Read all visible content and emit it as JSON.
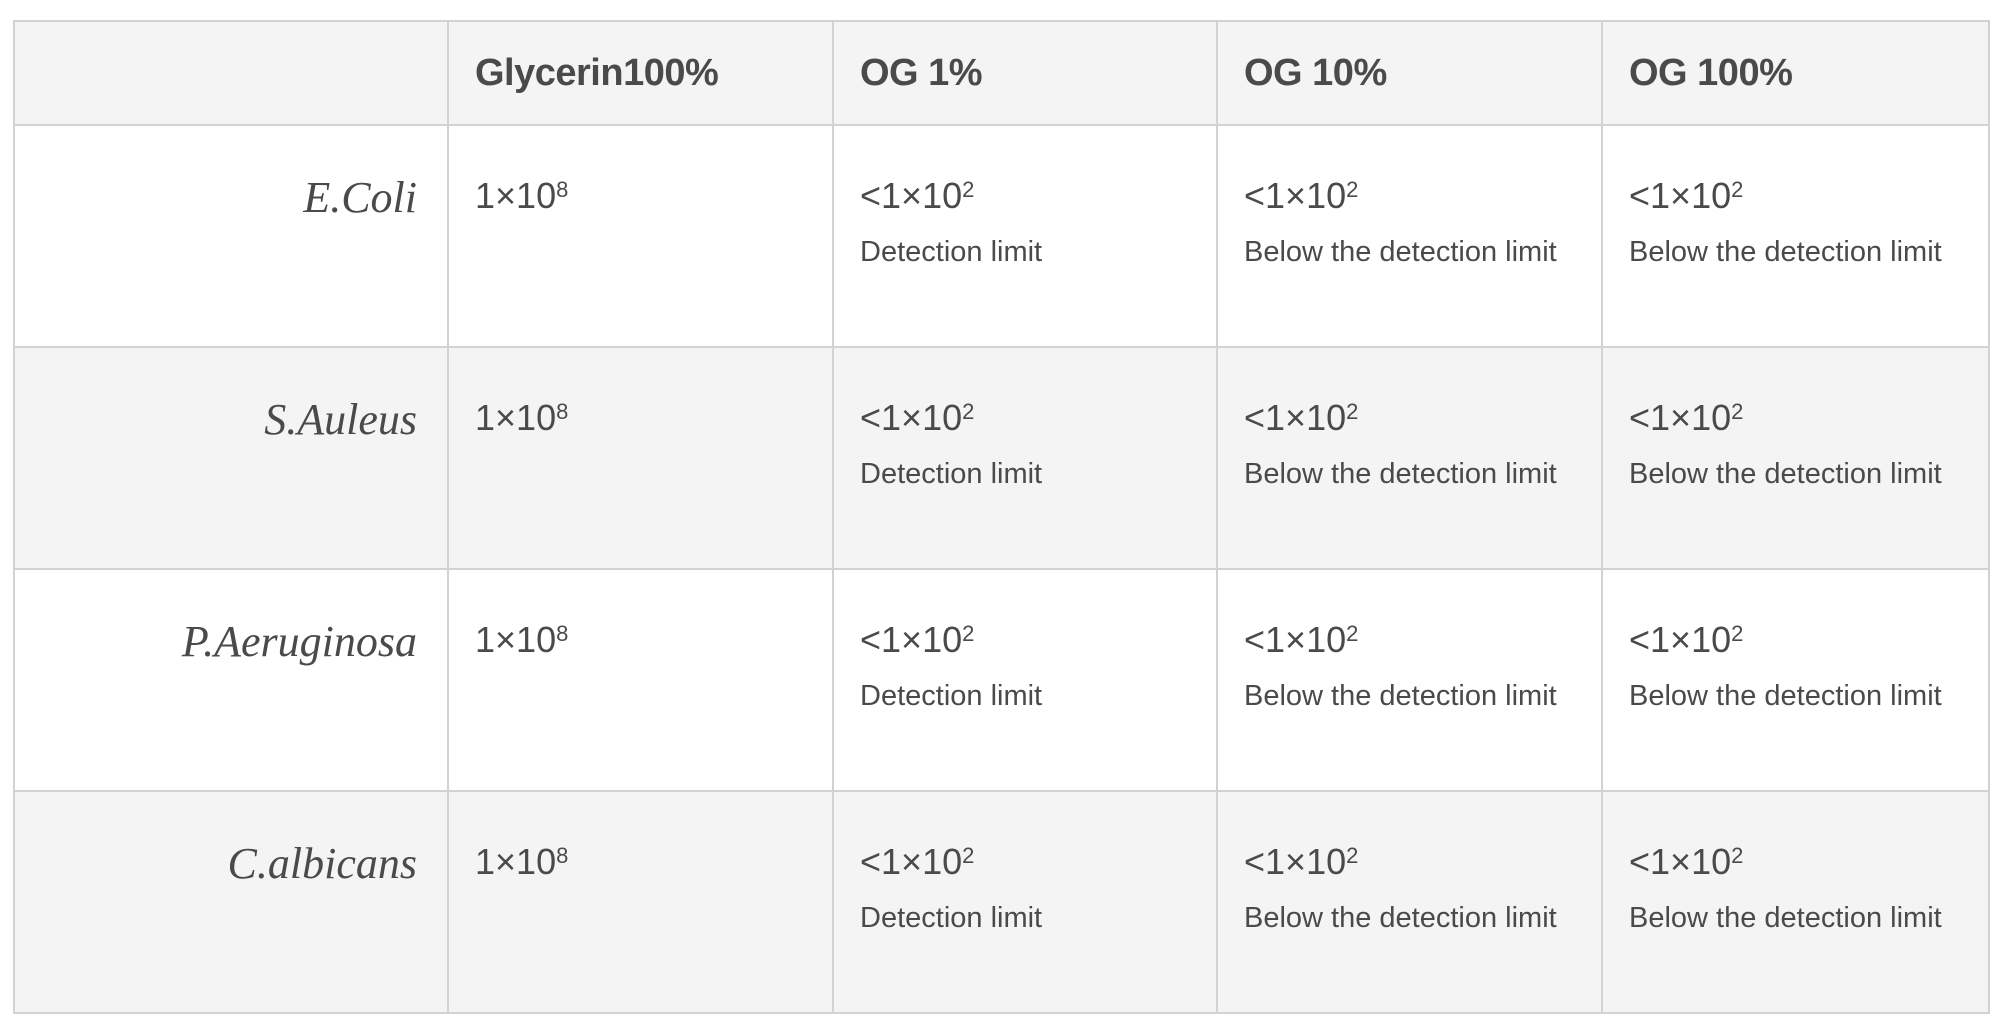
{
  "headers": [
    "",
    "Glycerin100%",
    "OG 1%",
    "OG 10%",
    "OG 100%"
  ],
  "rows": [
    {
      "species": "E.Coli",
      "cells": [
        {
          "prefix": "1×10",
          "exp": "8",
          "note": ""
        },
        {
          "prefix": "<1×10",
          "exp": "2",
          "note": "Detection limit"
        },
        {
          "prefix": "<1×10",
          "exp": "2",
          "note": "Below the detection limit"
        },
        {
          "prefix": "<1×10",
          "exp": "2",
          "note": "Below the detection limit"
        }
      ]
    },
    {
      "species": "S.Auleus",
      "cells": [
        {
          "prefix": "1×10",
          "exp": "8",
          "note": ""
        },
        {
          "prefix": "<1×10",
          "exp": "2",
          "note": "Detection limit"
        },
        {
          "prefix": "<1×10",
          "exp": "2",
          "note": "Below the detection limit"
        },
        {
          "prefix": "<1×10",
          "exp": "2",
          "note": "Below the detection limit"
        }
      ]
    },
    {
      "species": "P.Aeruginosa",
      "cells": [
        {
          "prefix": "1×10",
          "exp": "8",
          "note": ""
        },
        {
          "prefix": "<1×10",
          "exp": "2",
          "note": "Detection limit"
        },
        {
          "prefix": "<1×10",
          "exp": "2",
          "note": "Below the detection limit"
        },
        {
          "prefix": "<1×10",
          "exp": "2",
          "note": "Below the detection limit"
        }
      ]
    },
    {
      "species": "C.albicans",
      "cells": [
        {
          "prefix": "1×10",
          "exp": "8",
          "note": ""
        },
        {
          "prefix": "<1×10",
          "exp": "2",
          "note": "Detection limit"
        },
        {
          "prefix": "<1×10",
          "exp": "2",
          "note": "Below the detection limit"
        },
        {
          "prefix": "<1×10",
          "exp": "2",
          "note": "Below the detection limit"
        }
      ]
    }
  ]
}
